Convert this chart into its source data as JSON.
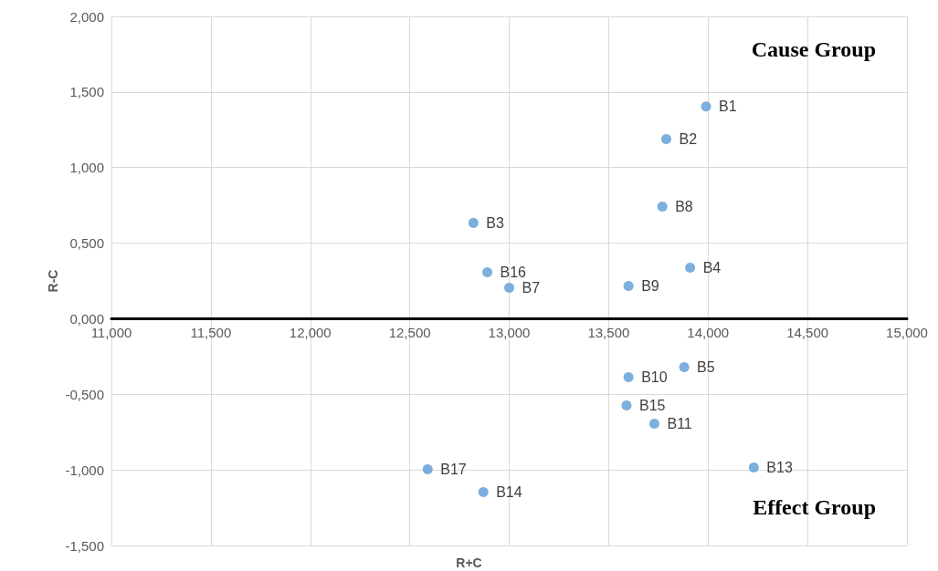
{
  "chart_data": {
    "type": "scatter",
    "xlabel": "R+C",
    "ylabel": "R-C",
    "x": [
      13.99,
      13.79,
      12.82,
      13.91,
      13.88,
      13.0,
      13.77,
      13.6,
      13.6,
      13.73,
      14.23,
      12.87,
      13.59,
      12.89,
      12.59
    ],
    "series": [
      {
        "color": "#5b9bd5",
        "values": [
          1.404,
          1.189,
          0.634,
          0.338,
          -0.32,
          0.205,
          0.742,
          0.217,
          -0.386,
          -0.694,
          -0.984,
          -1.147,
          -0.573,
          0.308,
          -0.996
        ]
      }
    ],
    "xlim": [
      11,
      15
    ],
    "xticks": [
      {
        "value": 11,
        "label": "11,000"
      },
      {
        "value": 11.5,
        "label": "11,500"
      },
      {
        "value": 12,
        "label": "12,000"
      },
      {
        "value": 12.5,
        "label": "12,500"
      },
      {
        "value": 13,
        "label": "13,000"
      },
      {
        "value": 13.5,
        "label": "13,500"
      },
      {
        "value": 14,
        "label": "14,000"
      },
      {
        "value": 14.5,
        "label": "14,500"
      },
      {
        "value": 15,
        "label": "15,000"
      }
    ],
    "ylim": [
      -1.5,
      2
    ],
    "yticks": [
      {
        "value": -1.5,
        "label": "-1,500"
      },
      {
        "value": -1,
        "label": "-1,000"
      },
      {
        "value": -0.5,
        "label": "-0,500"
      },
      {
        "value": 0,
        "label": "0,000"
      },
      {
        "value": 0.5,
        "label": "0,500"
      },
      {
        "value": 1,
        "label": "1,000"
      },
      {
        "value": 1.5,
        "label": "1,500"
      },
      {
        "value": 2,
        "label": "2,000"
      }
    ],
    "grid": true,
    "marker": "circle",
    "annotations": [
      {
        "text": "B1",
        "x": 13.99,
        "y": 1.404
      },
      {
        "text": "B2",
        "x": 13.79,
        "y": 1.189
      },
      {
        "text": "B3",
        "x": 12.82,
        "y": 0.634
      },
      {
        "text": "B4",
        "x": 13.91,
        "y": 0.338
      },
      {
        "text": "B5",
        "x": 13.88,
        "y": -0.32
      },
      {
        "text": "B7",
        "x": 13.0,
        "y": 0.205
      },
      {
        "text": "B8",
        "x": 13.77,
        "y": 0.742
      },
      {
        "text": "B9",
        "x": 13.6,
        "y": 0.217
      },
      {
        "text": "B10",
        "x": 13.6,
        "y": -0.386
      },
      {
        "text": "B11",
        "x": 13.73,
        "y": -0.694
      },
      {
        "text": "B13",
        "x": 14.23,
        "y": -0.984
      },
      {
        "text": "B14",
        "x": 12.87,
        "y": -1.147
      },
      {
        "text": "B15",
        "x": 13.59,
        "y": -0.573
      },
      {
        "text": "B16",
        "x": 12.89,
        "y": 0.308
      },
      {
        "text": "B17",
        "x": 12.59,
        "y": -0.996
      },
      "Cause Group",
      "Effect Group"
    ]
  }
}
